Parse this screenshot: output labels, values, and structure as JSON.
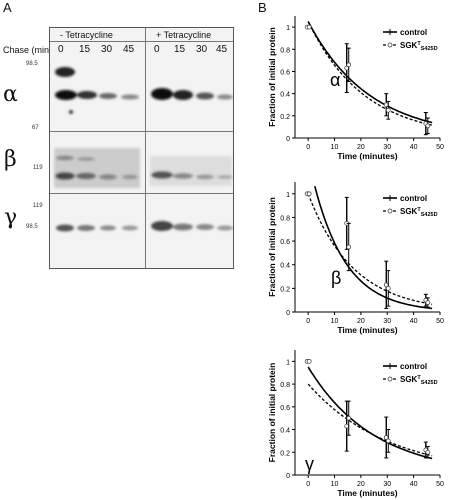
{
  "panels": {
    "a_letter": "A",
    "b_letter": "B"
  },
  "blot": {
    "chase_label": "Chase (min)",
    "minus_label": "- Tetracycline",
    "plus_label": "+ Tetracycline",
    "lanes": [
      "0",
      "15",
      "30",
      "45",
      "0",
      "15",
      "30",
      "45"
    ],
    "markers": {
      "alpha_top": "98.5",
      "alpha_bottom": "67",
      "beta_top": "119",
      "gamma_top": "119",
      "gamma_mid": "98.5"
    },
    "subunits": [
      "α",
      "β",
      "γ"
    ]
  },
  "charts": [
    {
      "greek": "α",
      "ylabel": "Fraction of initial protein",
      "xlabel": "Time (minutes)",
      "legend_control": "control",
      "legend_sgk": "SGK",
      "legend_sgk_sup": "T",
      "legend_sgk_sub": "S425D"
    },
    {
      "greek": "β",
      "ylabel": "Fraction of initial protein",
      "xlabel": "Time (minutes)",
      "legend_control": "control",
      "legend_sgk": "SGK",
      "legend_sgk_sup": "T",
      "legend_sgk_sub": "S425D"
    },
    {
      "greek": "γ",
      "ylabel": "Fraction of initial protein",
      "xlabel": "Time (minutes)",
      "legend_control": "control",
      "legend_sgk": "SGK",
      "legend_sgk_sup": "T",
      "legend_sgk_sub": "S425D"
    }
  ],
  "chart_data": [
    {
      "type": "scatter",
      "xlim": [
        -5,
        50
      ],
      "ylim": [
        0,
        1.1
      ],
      "xticks": [
        "0",
        "10",
        "20",
        "30",
        "40",
        "50"
      ],
      "yticks": [
        "0",
        "0.2",
        "0.4",
        "0.6",
        "0.8",
        "1"
      ],
      "series": [
        {
          "name": "control",
          "x": [
            0,
            15,
            30,
            45
          ],
          "y": [
            1.0,
            0.63,
            0.3,
            0.13
          ],
          "err": [
            0,
            0.22,
            0.1,
            0.1
          ]
        },
        {
          "name": "SGK T S425D",
          "x": [
            0,
            15,
            30,
            45
          ],
          "y": [
            1.0,
            0.66,
            0.25,
            0.11
          ],
          "err": [
            0,
            0.15,
            0.08,
            0.07
          ]
        }
      ],
      "fits": [
        {
          "k": 0.043,
          "y0": 1.05
        },
        {
          "k": 0.047,
          "y0": 1.05
        }
      ]
    },
    {
      "type": "scatter",
      "xlim": [
        -5,
        50
      ],
      "ylim": [
        0,
        1.1
      ],
      "xticks": [
        "0",
        "10",
        "20",
        "30",
        "40",
        "50"
      ],
      "yticks": [
        "0",
        "0.2",
        "0.4",
        "0.6",
        "0.8",
        "1"
      ],
      "series": [
        {
          "name": "control",
          "x": [
            0,
            15,
            30,
            45
          ],
          "y": [
            1.0,
            0.75,
            0.23,
            0.1
          ],
          "err": [
            0,
            0.22,
            0.2,
            0.05
          ]
        },
        {
          "name": "SGK T S425D",
          "x": [
            0,
            15,
            30,
            45
          ],
          "y": [
            1.0,
            0.55,
            0.2,
            0.08
          ],
          "err": [
            0,
            0.2,
            0.15,
            0.04
          ]
        }
      ],
      "fits": [
        {
          "k": 0.08,
          "y0": 1.3
        },
        {
          "k": 0.058,
          "y0": 1.0
        }
      ]
    },
    {
      "type": "scatter",
      "xlim": [
        -5,
        50
      ],
      "ylim": [
        0,
        1.1
      ],
      "xticks": [
        "0",
        "10",
        "20",
        "30",
        "40",
        "50"
      ],
      "yticks": [
        "0",
        "0.2",
        "0.4",
        "0.6",
        "0.8",
        "1"
      ],
      "series": [
        {
          "name": "control",
          "x": [
            0,
            15,
            30,
            45
          ],
          "y": [
            1.0,
            0.43,
            0.33,
            0.22
          ],
          "err": [
            0,
            0.22,
            0.18,
            0.07
          ]
        },
        {
          "name": "SGK T S425D",
          "x": [
            0,
            15,
            30,
            45
          ],
          "y": [
            1.0,
            0.5,
            0.3,
            0.2
          ],
          "err": [
            0,
            0.15,
            0.1,
            0.05
          ]
        }
      ],
      "fits": [
        {
          "k": 0.04,
          "y0": 0.95
        },
        {
          "k": 0.033,
          "y0": 0.8
        }
      ]
    }
  ]
}
